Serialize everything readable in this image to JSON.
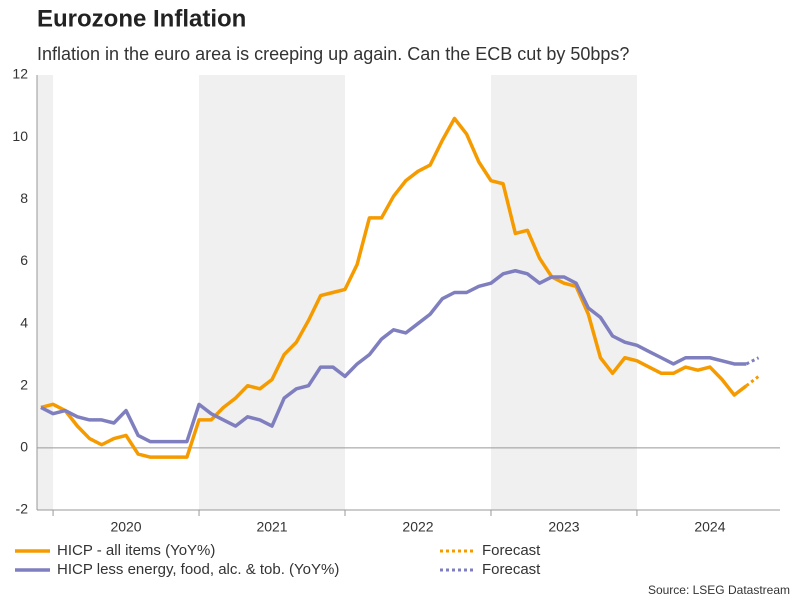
{
  "chart_data": {
    "type": "line",
    "title": "Eurozone Inflation",
    "subtitle": "Inflation in the euro area is creeping up again. Can the ECB cut by 50bps?",
    "source": "Source: LSEG Datastream",
    "x": [
      2019.917,
      2020,
      2020.083,
      2020.167,
      2020.25,
      2020.333,
      2020.417,
      2020.5,
      2020.583,
      2020.667,
      2020.75,
      2020.833,
      2020.917,
      2021,
      2021.083,
      2021.167,
      2021.25,
      2021.333,
      2021.417,
      2021.5,
      2021.583,
      2021.667,
      2021.75,
      2021.833,
      2021.917,
      2022,
      2022.083,
      2022.167,
      2022.25,
      2022.333,
      2022.417,
      2022.5,
      2022.583,
      2022.667,
      2022.75,
      2022.833,
      2022.917,
      2023,
      2023.083,
      2023.167,
      2023.25,
      2023.333,
      2023.417,
      2023.5,
      2023.583,
      2023.667,
      2023.75,
      2023.833,
      2023.917,
      2024,
      2024.083,
      2024.167,
      2024.25,
      2024.333,
      2024.417,
      2024.5,
      2024.583,
      2024.667,
      2024.75
    ],
    "series": [
      {
        "name": "HICP - all items (YoY%)",
        "color": "#f59b00",
        "dashed": false,
        "values": [
          1.3,
          1.4,
          1.2,
          0.7,
          0.3,
          0.1,
          0.3,
          0.4,
          -0.2,
          -0.3,
          -0.3,
          -0.3,
          -0.3,
          0.9,
          0.9,
          1.3,
          1.6,
          2.0,
          1.9,
          2.2,
          3.0,
          3.4,
          4.1,
          4.9,
          5.0,
          5.1,
          5.9,
          7.4,
          7.4,
          8.1,
          8.6,
          8.9,
          9.1,
          9.9,
          10.6,
          10.1,
          9.2,
          8.6,
          8.5,
          6.9,
          7.0,
          6.1,
          5.5,
          5.3,
          5.2,
          4.3,
          2.9,
          2.4,
          2.9,
          2.8,
          2.6,
          2.4,
          2.4,
          2.6,
          2.5,
          2.6,
          2.2,
          1.7,
          2.0
        ]
      },
      {
        "name": "HICP less energy, food, alc. & tob. (YoY%)",
        "color": "#7f7fbf",
        "dashed": false,
        "values": [
          1.3,
          1.1,
          1.2,
          1.0,
          0.9,
          0.9,
          0.8,
          1.2,
          0.4,
          0.2,
          0.2,
          0.2,
          0.2,
          1.4,
          1.1,
          0.9,
          0.7,
          1.0,
          0.9,
          0.7,
          1.6,
          1.9,
          2.0,
          2.6,
          2.6,
          2.3,
          2.7,
          3.0,
          3.5,
          3.8,
          3.7,
          4.0,
          4.3,
          4.8,
          5.0,
          5.0,
          5.2,
          5.3,
          5.6,
          5.7,
          5.6,
          5.3,
          5.5,
          5.5,
          5.3,
          4.5,
          4.2,
          3.6,
          3.4,
          3.3,
          3.1,
          2.9,
          2.7,
          2.9,
          2.9,
          2.9,
          2.8,
          2.7,
          2.7
        ]
      },
      {
        "name": "Forecast",
        "color": "#f59b00",
        "dashed": true,
        "x": [
          2024.75,
          2024.833
        ],
        "values": [
          2.0,
          2.3
        ]
      },
      {
        "name": "Forecast",
        "color": "#7f7fbf",
        "dashed": true,
        "x": [
          2024.75,
          2024.833
        ],
        "values": [
          2.7,
          2.9
        ]
      }
    ],
    "xlim": [
      2019.89,
      2024.98
    ],
    "xticks": [
      {
        "value": 2020.5,
        "label": "2020"
      },
      {
        "value": 2021.5,
        "label": "2021"
      },
      {
        "value": 2022.5,
        "label": "2022"
      },
      {
        "value": 2023.5,
        "label": "2023"
      },
      {
        "value": 2024.5,
        "label": "2024"
      }
    ],
    "year_starts": [
      2020,
      2021,
      2022,
      2023,
      2024
    ],
    "shaded_bands": [
      [
        2019.89,
        2020
      ],
      [
        2021,
        2022
      ],
      [
        2023,
        2024
      ]
    ],
    "ylim": [
      -2,
      12
    ],
    "yticks": [
      -2,
      0,
      2,
      4,
      6,
      8,
      10,
      12
    ],
    "grid": false
  }
}
